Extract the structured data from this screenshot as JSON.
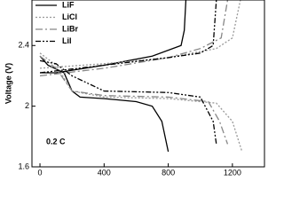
{
  "chart_data": {
    "type": "line",
    "y_label": "Voltage (V)",
    "annotation": "0.2 C",
    "xlim": [
      -50,
      1400
    ],
    "xticks": [
      0,
      400,
      800,
      1200
    ],
    "ylim": [
      1.6,
      2.7
    ],
    "yticks": [
      1.6,
      2.0,
      2.4
    ],
    "series": [
      {
        "name": "LiF",
        "color": "#000000",
        "dash": "none",
        "x": [
          0,
          50,
          150,
          200,
          250,
          400,
          600,
          700,
          760,
          800,
          null,
          0,
          100,
          400,
          700,
          880,
          900,
          910
        ],
        "values": [
          2.33,
          2.27,
          2.22,
          2.1,
          2.06,
          2.05,
          2.03,
          2.0,
          1.9,
          1.7,
          null,
          2.22,
          2.22,
          2.27,
          2.33,
          2.4,
          2.5,
          2.7
        ]
      },
      {
        "name": "LiCl",
        "color": "#999999",
        "dash": "2,2",
        "x": [
          0,
          100,
          200,
          400,
          800,
          1100,
          1200,
          1260,
          null,
          0,
          400,
          800,
          1100,
          1200,
          1250
        ],
        "values": [
          2.35,
          2.27,
          2.1,
          2.06,
          2.05,
          2.02,
          1.9,
          1.7,
          null,
          2.25,
          2.28,
          2.32,
          2.38,
          2.45,
          2.7
        ]
      },
      {
        "name": "LiBr",
        "color": "#888888",
        "dash": "8,3,2,3",
        "x": [
          0,
          100,
          200,
          400,
          800,
          1050,
          1120,
          1170,
          null,
          0,
          400,
          800,
          1000,
          1130,
          1170
        ],
        "values": [
          2.33,
          2.25,
          2.1,
          2.07,
          2.06,
          2.03,
          1.9,
          1.75,
          null,
          2.2,
          2.25,
          2.32,
          2.38,
          2.45,
          2.7
        ]
      },
      {
        "name": "LiI",
        "color": "#000000",
        "dash": "6,2,2,2,2,2",
        "x": [
          0,
          100,
          200,
          400,
          800,
          1000,
          1080,
          1100,
          null,
          0,
          400,
          800,
          1000,
          1080,
          1100
        ],
        "values": [
          2.3,
          2.28,
          2.2,
          2.1,
          2.09,
          2.06,
          1.9,
          1.75,
          null,
          2.22,
          2.27,
          2.32,
          2.35,
          2.4,
          2.7
        ]
      }
    ]
  }
}
